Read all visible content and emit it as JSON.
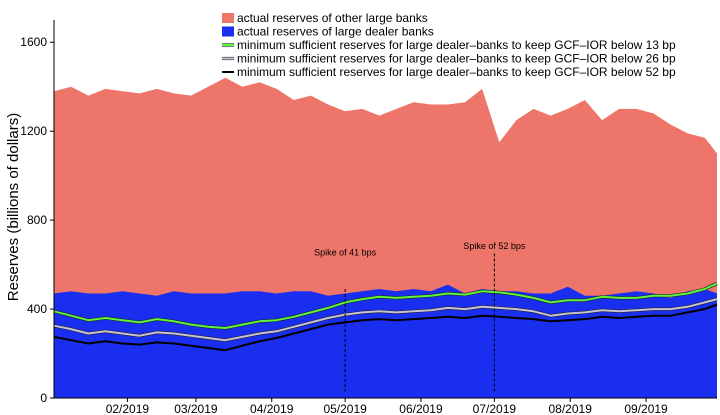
{
  "chart_data": {
    "type": "area",
    "ylabel": "Reserves (billions of dollars)",
    "xlabel": "",
    "title": "",
    "ylim": [
      0,
      1700
    ],
    "xlim": [
      "2019-01-02",
      "2019-09-30"
    ],
    "yticks": [
      0,
      400,
      800,
      1200,
      1600
    ],
    "xticks": [
      {
        "date": "2019-02-01",
        "label": "02/2019"
      },
      {
        "date": "2019-03-01",
        "label": "03/2019"
      },
      {
        "date": "2019-04-01",
        "label": "04/2019"
      },
      {
        "date": "2019-05-01",
        "label": "05/2019"
      },
      {
        "date": "2019-06-01",
        "label": "06/2019"
      },
      {
        "date": "2019-07-01",
        "label": "07/2019"
      },
      {
        "date": "2019-08-01",
        "label": "08/2019"
      },
      {
        "date": "2019-09-01",
        "label": "09/2019"
      }
    ],
    "legend_position": "top-right",
    "x": [
      "2019-01-02",
      "2019-01-09",
      "2019-01-16",
      "2019-01-23",
      "2019-01-30",
      "2019-02-06",
      "2019-02-13",
      "2019-02-20",
      "2019-02-27",
      "2019-03-06",
      "2019-03-13",
      "2019-03-20",
      "2019-03-27",
      "2019-04-03",
      "2019-04-10",
      "2019-04-17",
      "2019-04-24",
      "2019-05-01",
      "2019-05-08",
      "2019-05-15",
      "2019-05-22",
      "2019-05-29",
      "2019-06-05",
      "2019-06-12",
      "2019-06-19",
      "2019-06-26",
      "2019-07-03",
      "2019-07-10",
      "2019-07-17",
      "2019-07-24",
      "2019-07-31",
      "2019-08-07",
      "2019-08-14",
      "2019-08-21",
      "2019-08-28",
      "2019-09-04",
      "2019-09-11",
      "2019-09-18",
      "2019-09-25",
      "2019-09-30"
    ],
    "series": [
      {
        "name": "actual reserves of other large banks",
        "kind": "area-total",
        "color": "#ee756a",
        "values": [
          1380,
          1400,
          1360,
          1390,
          1380,
          1370,
          1390,
          1370,
          1360,
          1400,
          1440,
          1400,
          1420,
          1390,
          1340,
          1360,
          1320,
          1290,
          1300,
          1270,
          1300,
          1330,
          1320,
          1320,
          1330,
          1390,
          1150,
          1250,
          1300,
          1270,
          1300,
          1340,
          1250,
          1300,
          1300,
          1280,
          1230,
          1190,
          1170,
          1100
        ]
      },
      {
        "name": "actual reserves of large dealer banks",
        "kind": "area",
        "color": "#1a2ef0",
        "values": [
          470,
          480,
          470,
          470,
          480,
          470,
          460,
          480,
          470,
          470,
          470,
          480,
          480,
          470,
          480,
          480,
          460,
          470,
          480,
          490,
          480,
          490,
          480,
          510,
          470,
          490,
          480,
          480,
          470,
          470,
          500,
          460,
          460,
          470,
          480,
          470,
          450,
          480,
          490,
          470
        ]
      },
      {
        "name": "minimum sufficient reserves for large dealer–banks to keep GCF–IOR below 13 bp",
        "kind": "line",
        "color": "#5cf542",
        "values": [
          390,
          370,
          350,
          360,
          350,
          340,
          355,
          345,
          330,
          320,
          315,
          330,
          345,
          350,
          365,
          385,
          405,
          430,
          445,
          455,
          450,
          455,
          460,
          470,
          465,
          480,
          475,
          465,
          450,
          430,
          440,
          440,
          455,
          450,
          450,
          460,
          460,
          470,
          490,
          515
        ]
      },
      {
        "name": "minimum sufficient reserves for large dealer–banks to keep GCF–IOR below 26 bp",
        "kind": "line",
        "color": "#c5c4db",
        "values": [
          325,
          310,
          290,
          300,
          290,
          280,
          295,
          290,
          280,
          270,
          260,
          275,
          290,
          300,
          320,
          340,
          360,
          375,
          385,
          390,
          385,
          390,
          395,
          405,
          400,
          410,
          405,
          400,
          390,
          370,
          380,
          385,
          395,
          390,
          395,
          400,
          400,
          410,
          430,
          445
        ]
      },
      {
        "name": "minimum sufficient reserves for large dealer–banks to keep GCF–IOR below 52 bp",
        "kind": "line",
        "color": "#000000",
        "values": [
          275,
          260,
          245,
          255,
          245,
          240,
          250,
          245,
          235,
          225,
          215,
          235,
          255,
          270,
          290,
          310,
          330,
          340,
          350,
          355,
          350,
          355,
          360,
          365,
          360,
          370,
          365,
          360,
          355,
          345,
          350,
          355,
          365,
          360,
          365,
          370,
          370,
          385,
          400,
          420
        ]
      }
    ],
    "annotations": [
      {
        "date": "2019-05-01",
        "text": "Spike of 41 bps",
        "label_value": 640,
        "line_from": 490,
        "line_to": 30
      },
      {
        "date": "2019-07-01",
        "text": "Spike of 52 bps",
        "label_value": 670,
        "line_from": 650,
        "line_to": 30
      }
    ]
  }
}
